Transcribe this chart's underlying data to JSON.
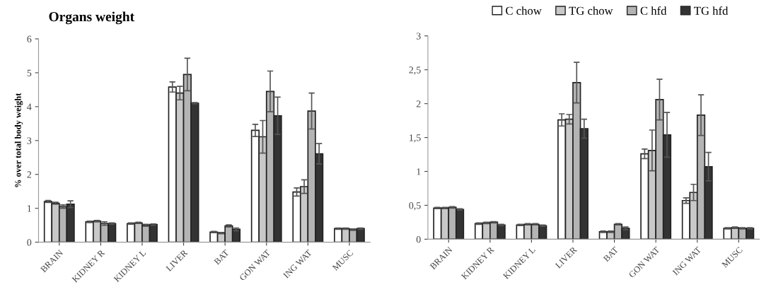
{
  "chart_data": [
    {
      "type": "bar",
      "title": "Organs weight",
      "ylabel": "% over total body weight",
      "categories": [
        "BRAIN",
        "KIDNEY R",
        "KIDNEY L",
        "LIVER",
        "BAT",
        "GON WAT",
        "ING WAT",
        "MUSC"
      ],
      "ylim": [
        0,
        6
      ],
      "yticks": [
        0,
        1,
        2,
        3,
        4,
        5,
        6
      ],
      "grid": false,
      "legend": false,
      "series": [
        {
          "color": "#ffffff",
          "values": [
            1.2,
            0.6,
            0.55,
            4.58,
            0.3,
            3.3,
            1.48,
            0.4
          ],
          "errors": [
            0.03,
            0.02,
            0.02,
            0.15,
            0.02,
            0.18,
            0.12,
            0.02
          ]
        },
        {
          "color": "#c8c8c8",
          "values": [
            1.15,
            0.62,
            0.57,
            4.4,
            0.27,
            3.11,
            1.64,
            0.4
          ],
          "errors": [
            0.03,
            0.02,
            0.02,
            0.2,
            0.02,
            0.48,
            0.2,
            0.02
          ]
        },
        {
          "color": "#b4b4b4",
          "values": [
            1.05,
            0.55,
            0.5,
            4.95,
            0.48,
            4.45,
            3.87,
            0.37
          ],
          "errors": [
            0.05,
            0.05,
            0.03,
            0.48,
            0.03,
            0.6,
            0.53,
            0.02
          ]
        },
        {
          "color": "#333333",
          "values": [
            1.12,
            0.55,
            0.52,
            4.1,
            0.38,
            3.73,
            2.61,
            0.4
          ],
          "errors": [
            0.1,
            0.02,
            0.02,
            0.02,
            0.04,
            0.55,
            0.3,
            0.02
          ]
        }
      ]
    },
    {
      "type": "bar",
      "categories": [
        "BRAIN",
        "KIDNEY R",
        "KIDNEY L",
        "LIVER",
        "BAT",
        "GON WAT",
        "ING WAT",
        "MUSC"
      ],
      "ylim": [
        0,
        3
      ],
      "yticks": [
        0,
        {
          "value": 0.5,
          "label": "0,5"
        },
        1,
        {
          "value": 1.5,
          "label": "1,5"
        },
        2,
        {
          "value": 2.5,
          "label": "2,5"
        },
        3
      ],
      "grid": false,
      "legend": "top",
      "series": [
        {
          "name": "C chow",
          "color": "#ffffff",
          "values": [
            0.46,
            0.23,
            0.21,
            1.76,
            0.11,
            1.26,
            0.57,
            0.16
          ],
          "errors": [
            0.01,
            0.01,
            0.01,
            0.09,
            0.01,
            0.07,
            0.04,
            0.01
          ]
        },
        {
          "name": "TG chow",
          "color": "#c8c8c8",
          "values": [
            0.46,
            0.24,
            0.22,
            1.77,
            0.11,
            1.31,
            0.69,
            0.17
          ],
          "errors": [
            0.01,
            0.01,
            0.01,
            0.07,
            0.01,
            0.3,
            0.12,
            0.01
          ]
        },
        {
          "name": "C hfd",
          "color": "#b4b4b4",
          "values": [
            0.47,
            0.25,
            0.22,
            2.31,
            0.22,
            2.06,
            1.83,
            0.16
          ],
          "errors": [
            0.01,
            0.01,
            0.01,
            0.3,
            0.01,
            0.3,
            0.3,
            0.01
          ]
        },
        {
          "name": "TG hfd",
          "color": "#333333",
          "values": [
            0.44,
            0.21,
            0.2,
            1.63,
            0.16,
            1.54,
            1.07,
            0.16
          ],
          "errors": [
            0.01,
            0.01,
            0.01,
            0.14,
            0.02,
            0.33,
            0.21,
            0.01
          ]
        }
      ]
    }
  ]
}
